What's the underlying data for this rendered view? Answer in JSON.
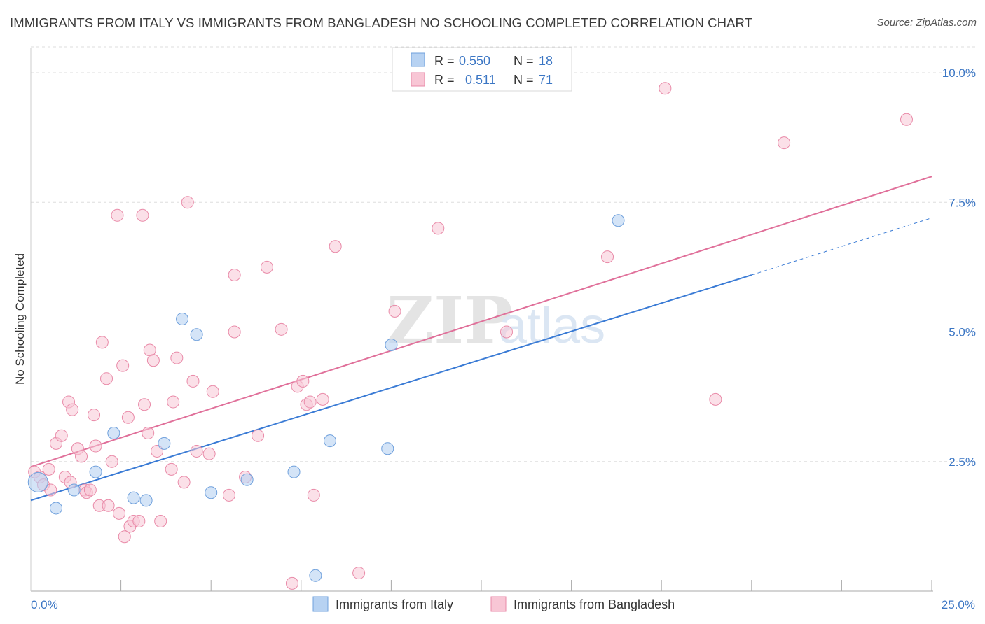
{
  "title": "IMMIGRANTS FROM ITALY VS IMMIGRANTS FROM BANGLADESH NO SCHOOLING COMPLETED CORRELATION CHART",
  "source": "Source: ZipAtlas.com",
  "watermark": {
    "zip": "ZIP",
    "atlas": "atlas"
  },
  "legend_stats": {
    "italy": {
      "r_label": "R =",
      "r_value": "0.550",
      "n_label": "N =",
      "n_value": "18"
    },
    "bangladesh": {
      "r_label": "R =",
      "r_value": "0.511",
      "n_label": "N =",
      "n_value": "71"
    }
  },
  "colors": {
    "italy_fill": "#b7d2f2",
    "italy_stroke": "#6fa0dc",
    "italy_line": "#3a7bd5",
    "bangladesh_fill": "#f8c6d5",
    "bangladesh_stroke": "#e98aa8",
    "bangladesh_line": "#e0709a",
    "value_text": "#3b76c4",
    "grid": "#dddddd"
  },
  "chart_data": {
    "type": "scatter",
    "title": "IMMIGRANTS FROM ITALY VS IMMIGRANTS FROM BANGLADESH NO SCHOOLING COMPLETED CORRELATION CHART",
    "xlabel": "",
    "ylabel": "No Schooling Completed",
    "xlim": [
      0,
      25
    ],
    "ylim": [
      0,
      10.5
    ],
    "x_tick_labels": [
      "0.0%",
      "25.0%"
    ],
    "y_ticks": [
      2.5,
      5.0,
      7.5,
      10.0
    ],
    "y_tick_labels": [
      "2.5%",
      "5.0%",
      "7.5%",
      "10.0%"
    ],
    "grid": true,
    "legend_position": "bottom",
    "series": [
      {
        "name": "Immigrants from Italy",
        "points": [
          [
            0.2,
            2.1
          ],
          [
            0.7,
            1.6
          ],
          [
            1.2,
            1.95
          ],
          [
            1.8,
            2.3
          ],
          [
            2.3,
            3.05
          ],
          [
            2.85,
            1.8
          ],
          [
            3.2,
            1.75
          ],
          [
            3.7,
            2.85
          ],
          [
            4.2,
            5.25
          ],
          [
            4.6,
            4.95
          ],
          [
            5.0,
            1.9
          ],
          [
            6.0,
            2.15
          ],
          [
            7.3,
            2.3
          ],
          [
            7.9,
            0.3
          ],
          [
            8.3,
            2.9
          ],
          [
            10.0,
            4.75
          ],
          [
            9.9,
            2.75
          ],
          [
            16.3,
            7.15
          ]
        ],
        "trend": {
          "x0": 0,
          "y0": 1.75,
          "x1": 20.0,
          "y1": 6.1,
          "dash_to_x": 25.0,
          "dash_to_y": 7.2
        }
      },
      {
        "name": "Immigrants from Bangladesh",
        "points": [
          [
            0.1,
            2.3
          ],
          [
            0.25,
            2.2
          ],
          [
            0.35,
            2.05
          ],
          [
            0.5,
            2.35
          ],
          [
            0.55,
            1.95
          ],
          [
            0.7,
            2.85
          ],
          [
            0.85,
            3.0
          ],
          [
            0.95,
            2.2
          ],
          [
            1.05,
            3.65
          ],
          [
            1.1,
            2.1
          ],
          [
            1.15,
            3.5
          ],
          [
            1.3,
            2.75
          ],
          [
            1.4,
            2.6
          ],
          [
            1.5,
            1.95
          ],
          [
            1.55,
            1.9
          ],
          [
            1.65,
            1.95
          ],
          [
            1.75,
            3.4
          ],
          [
            1.8,
            2.8
          ],
          [
            1.9,
            1.65
          ],
          [
            1.98,
            4.8
          ],
          [
            2.1,
            4.1
          ],
          [
            2.15,
            1.65
          ],
          [
            2.25,
            2.5
          ],
          [
            2.4,
            7.25
          ],
          [
            2.45,
            1.5
          ],
          [
            2.55,
            4.35
          ],
          [
            2.6,
            1.05
          ],
          [
            2.7,
            3.35
          ],
          [
            2.75,
            1.25
          ],
          [
            2.85,
            1.35
          ],
          [
            3.0,
            1.35
          ],
          [
            3.1,
            7.25
          ],
          [
            3.15,
            3.6
          ],
          [
            3.25,
            3.05
          ],
          [
            3.3,
            4.65
          ],
          [
            3.4,
            4.45
          ],
          [
            3.5,
            2.7
          ],
          [
            3.6,
            1.35
          ],
          [
            3.9,
            2.35
          ],
          [
            3.95,
            3.65
          ],
          [
            4.05,
            4.5
          ],
          [
            4.25,
            2.1
          ],
          [
            4.35,
            7.5
          ],
          [
            4.5,
            4.05
          ],
          [
            4.6,
            2.7
          ],
          [
            4.95,
            2.65
          ],
          [
            5.05,
            3.85
          ],
          [
            5.5,
            1.85
          ],
          [
            5.65,
            6.1
          ],
          [
            5.65,
            5.0
          ],
          [
            5.95,
            2.2
          ],
          [
            6.3,
            3.0
          ],
          [
            6.55,
            6.25
          ],
          [
            6.95,
            5.05
          ],
          [
            7.25,
            0.15
          ],
          [
            7.4,
            3.95
          ],
          [
            7.55,
            4.05
          ],
          [
            7.65,
            3.6
          ],
          [
            7.75,
            3.65
          ],
          [
            7.85,
            1.85
          ],
          [
            8.1,
            3.7
          ],
          [
            8.45,
            6.65
          ],
          [
            9.1,
            0.35
          ],
          [
            10.1,
            5.4
          ],
          [
            11.3,
            7.0
          ],
          [
            13.2,
            5.0
          ],
          [
            16.0,
            6.45
          ],
          [
            17.6,
            9.7
          ],
          [
            19.0,
            3.7
          ],
          [
            20.9,
            8.65
          ],
          [
            24.3,
            9.1
          ]
        ],
        "trend": {
          "x0": 0,
          "y0": 2.4,
          "x1": 25.0,
          "y1": 8.0
        }
      }
    ]
  }
}
